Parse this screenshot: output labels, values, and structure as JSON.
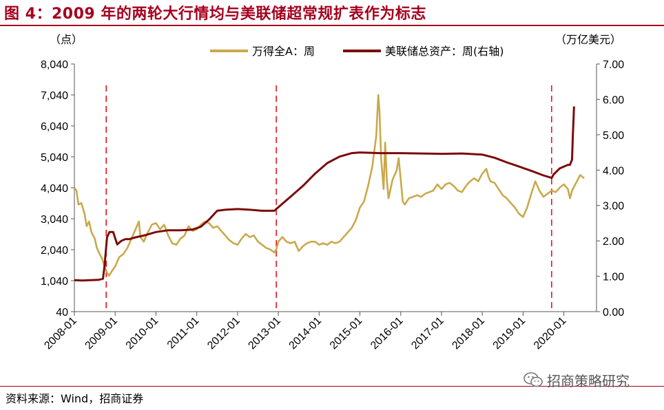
{
  "title": "图 4：2009 年的两轮大行情均与美联储超常规扩表作为标志",
  "source": "资料来源：Wind，招商证券",
  "watermark": "招商策略研究",
  "colors": {
    "title": "#a5001e",
    "series_a": "#c9a94a",
    "series_b": "#7b0a0a",
    "vline": "#e8000b"
  },
  "chart_data": {
    "type": "line",
    "left_unit": "（点）",
    "right_unit": "（万亿美元）",
    "x_ticks": [
      "2008-01",
      "2009-01",
      "2010-01",
      "2011-01",
      "2012-01",
      "2013-01",
      "2014-01",
      "2015-01",
      "2016-01",
      "2017-01",
      "2018-01",
      "2019-01",
      "2020-01"
    ],
    "y_left": {
      "min": 40,
      "max": 8040,
      "ticks": [
        8040,
        7040,
        6040,
        5040,
        4040,
        3040,
        2040,
        1040,
        40
      ],
      "tick_labels": [
        "8,040",
        "7,040",
        "6,040",
        "5,040",
        "4,040",
        "3,040",
        "2,040",
        "1,040",
        "40"
      ]
    },
    "y_right": {
      "min": 0,
      "max": 7,
      "ticks": [
        7,
        6,
        5,
        4,
        3,
        2,
        1,
        0
      ],
      "tick_labels": [
        "7.00",
        "6.00",
        "5.00",
        "4.00",
        "3.00",
        "2.00",
        "1.00",
        "0.00"
      ]
    },
    "vlines": [
      2008.78,
      2012.95,
      2019.7
    ],
    "series": [
      {
        "name": "万得全A：周",
        "axis": "left",
        "points": [
          [
            2008.0,
            4040
          ],
          [
            2008.05,
            3950
          ],
          [
            2008.1,
            3500
          ],
          [
            2008.17,
            3550
          ],
          [
            2008.25,
            3200
          ],
          [
            2008.3,
            2800
          ],
          [
            2008.36,
            2950
          ],
          [
            2008.42,
            2600
          ],
          [
            2008.5,
            2400
          ],
          [
            2008.55,
            2100
          ],
          [
            2008.62,
            1900
          ],
          [
            2008.68,
            1750
          ],
          [
            2008.75,
            1450
          ],
          [
            2008.8,
            1300
          ],
          [
            2008.85,
            1200
          ],
          [
            2008.92,
            1350
          ],
          [
            2009.0,
            1500
          ],
          [
            2009.1,
            1800
          ],
          [
            2009.2,
            1900
          ],
          [
            2009.3,
            2100
          ],
          [
            2009.4,
            2400
          ],
          [
            2009.5,
            2700
          ],
          [
            2009.58,
            2950
          ],
          [
            2009.62,
            2450
          ],
          [
            2009.7,
            2300
          ],
          [
            2009.8,
            2600
          ],
          [
            2009.9,
            2850
          ],
          [
            2010.0,
            2900
          ],
          [
            2010.1,
            2700
          ],
          [
            2010.2,
            2850
          ],
          [
            2010.3,
            2500
          ],
          [
            2010.4,
            2250
          ],
          [
            2010.5,
            2200
          ],
          [
            2010.6,
            2400
          ],
          [
            2010.7,
            2500
          ],
          [
            2010.8,
            2800
          ],
          [
            2010.9,
            2650
          ],
          [
            2011.0,
            2700
          ],
          [
            2011.1,
            2850
          ],
          [
            2011.2,
            2950
          ],
          [
            2011.3,
            2900
          ],
          [
            2011.4,
            2750
          ],
          [
            2011.5,
            2800
          ],
          [
            2011.6,
            2650
          ],
          [
            2011.7,
            2500
          ],
          [
            2011.8,
            2350
          ],
          [
            2011.9,
            2250
          ],
          [
            2012.0,
            2200
          ],
          [
            2012.1,
            2400
          ],
          [
            2012.2,
            2550
          ],
          [
            2012.3,
            2450
          ],
          [
            2012.4,
            2500
          ],
          [
            2012.5,
            2300
          ],
          [
            2012.6,
            2200
          ],
          [
            2012.7,
            2100
          ],
          [
            2012.8,
            2050
          ],
          [
            2012.9,
            1950
          ],
          [
            2012.95,
            2050
          ],
          [
            2013.0,
            2300
          ],
          [
            2013.1,
            2450
          ],
          [
            2013.2,
            2300
          ],
          [
            2013.3,
            2250
          ],
          [
            2013.4,
            2300
          ],
          [
            2013.5,
            2000
          ],
          [
            2013.6,
            2150
          ],
          [
            2013.7,
            2250
          ],
          [
            2013.8,
            2300
          ],
          [
            2013.9,
            2300
          ],
          [
            2014.0,
            2200
          ],
          [
            2014.1,
            2250
          ],
          [
            2014.2,
            2200
          ],
          [
            2014.3,
            2300
          ],
          [
            2014.4,
            2250
          ],
          [
            2014.5,
            2300
          ],
          [
            2014.6,
            2450
          ],
          [
            2014.7,
            2600
          ],
          [
            2014.8,
            2750
          ],
          [
            2014.9,
            3000
          ],
          [
            2015.0,
            3400
          ],
          [
            2015.1,
            3600
          ],
          [
            2015.2,
            4100
          ],
          [
            2015.3,
            4700
          ],
          [
            2015.4,
            5700
          ],
          [
            2015.45,
            7040
          ],
          [
            2015.48,
            6500
          ],
          [
            2015.52,
            5000
          ],
          [
            2015.55,
            4500
          ],
          [
            2015.58,
            4000
          ],
          [
            2015.62,
            5500
          ],
          [
            2015.66,
            4300
          ],
          [
            2015.7,
            3700
          ],
          [
            2015.8,
            4300
          ],
          [
            2015.9,
            4600
          ],
          [
            2015.95,
            5000
          ],
          [
            2016.0,
            4300
          ],
          [
            2016.05,
            3600
          ],
          [
            2016.1,
            3500
          ],
          [
            2016.2,
            3700
          ],
          [
            2016.3,
            3750
          ],
          [
            2016.4,
            3800
          ],
          [
            2016.5,
            3750
          ],
          [
            2016.6,
            3850
          ],
          [
            2016.7,
            3900
          ],
          [
            2016.8,
            3950
          ],
          [
            2016.9,
            4150
          ],
          [
            2017.0,
            4000
          ],
          [
            2017.1,
            4150
          ],
          [
            2017.2,
            4200
          ],
          [
            2017.3,
            4100
          ],
          [
            2017.4,
            3950
          ],
          [
            2017.5,
            3900
          ],
          [
            2017.6,
            4100
          ],
          [
            2017.7,
            4250
          ],
          [
            2017.8,
            4350
          ],
          [
            2017.9,
            4250
          ],
          [
            2018.0,
            4500
          ],
          [
            2018.1,
            4650
          ],
          [
            2018.15,
            4400
          ],
          [
            2018.2,
            4250
          ],
          [
            2018.3,
            4200
          ],
          [
            2018.4,
            4000
          ],
          [
            2018.5,
            3800
          ],
          [
            2018.6,
            3700
          ],
          [
            2018.7,
            3550
          ],
          [
            2018.8,
            3400
          ],
          [
            2018.9,
            3200
          ],
          [
            2019.0,
            3100
          ],
          [
            2019.1,
            3400
          ],
          [
            2019.2,
            3850
          ],
          [
            2019.3,
            4250
          ],
          [
            2019.4,
            3950
          ],
          [
            2019.5,
            3750
          ],
          [
            2019.6,
            3850
          ],
          [
            2019.7,
            3950
          ],
          [
            2019.8,
            3900
          ],
          [
            2019.9,
            4050
          ],
          [
            2020.0,
            4150
          ],
          [
            2020.1,
            4000
          ],
          [
            2020.15,
            3700
          ],
          [
            2020.2,
            3950
          ],
          [
            2020.3,
            4200
          ],
          [
            2020.4,
            4450
          ],
          [
            2020.5,
            4350
          ]
        ]
      },
      {
        "name": "美联储总资产：周(右轴)",
        "axis": "right",
        "points": [
          [
            2008.0,
            0.89
          ],
          [
            2008.2,
            0.88
          ],
          [
            2008.4,
            0.89
          ],
          [
            2008.6,
            0.9
          ],
          [
            2008.7,
            0.93
          ],
          [
            2008.74,
            1.3
          ],
          [
            2008.8,
            2.1
          ],
          [
            2008.86,
            2.25
          ],
          [
            2008.95,
            2.25
          ],
          [
            2009.05,
            1.9
          ],
          [
            2009.15,
            2.0
          ],
          [
            2009.25,
            2.05
          ],
          [
            2009.35,
            2.05
          ],
          [
            2009.5,
            2.1
          ],
          [
            2009.7,
            2.15
          ],
          [
            2010.0,
            2.25
          ],
          [
            2010.3,
            2.3
          ],
          [
            2010.6,
            2.3
          ],
          [
            2010.9,
            2.32
          ],
          [
            2011.1,
            2.4
          ],
          [
            2011.3,
            2.6
          ],
          [
            2011.5,
            2.85
          ],
          [
            2011.7,
            2.88
          ],
          [
            2012.0,
            2.9
          ],
          [
            2012.3,
            2.88
          ],
          [
            2012.6,
            2.85
          ],
          [
            2012.9,
            2.85
          ],
          [
            2013.0,
            2.95
          ],
          [
            2013.3,
            3.25
          ],
          [
            2013.6,
            3.55
          ],
          [
            2013.9,
            3.9
          ],
          [
            2014.2,
            4.2
          ],
          [
            2014.5,
            4.38
          ],
          [
            2014.8,
            4.48
          ],
          [
            2015.0,
            4.5
          ],
          [
            2015.5,
            4.48
          ],
          [
            2016.0,
            4.48
          ],
          [
            2016.5,
            4.47
          ],
          [
            2017.0,
            4.46
          ],
          [
            2017.5,
            4.47
          ],
          [
            2018.0,
            4.44
          ],
          [
            2018.3,
            4.35
          ],
          [
            2018.6,
            4.22
          ],
          [
            2018.9,
            4.1
          ],
          [
            2019.2,
            3.98
          ],
          [
            2019.5,
            3.85
          ],
          [
            2019.7,
            3.78
          ],
          [
            2019.75,
            3.88
          ],
          [
            2019.9,
            4.05
          ],
          [
            2020.1,
            4.15
          ],
          [
            2020.15,
            4.15
          ],
          [
            2020.2,
            4.3
          ],
          [
            2020.22,
            5.0
          ],
          [
            2020.25,
            5.8
          ]
        ]
      }
    ]
  }
}
